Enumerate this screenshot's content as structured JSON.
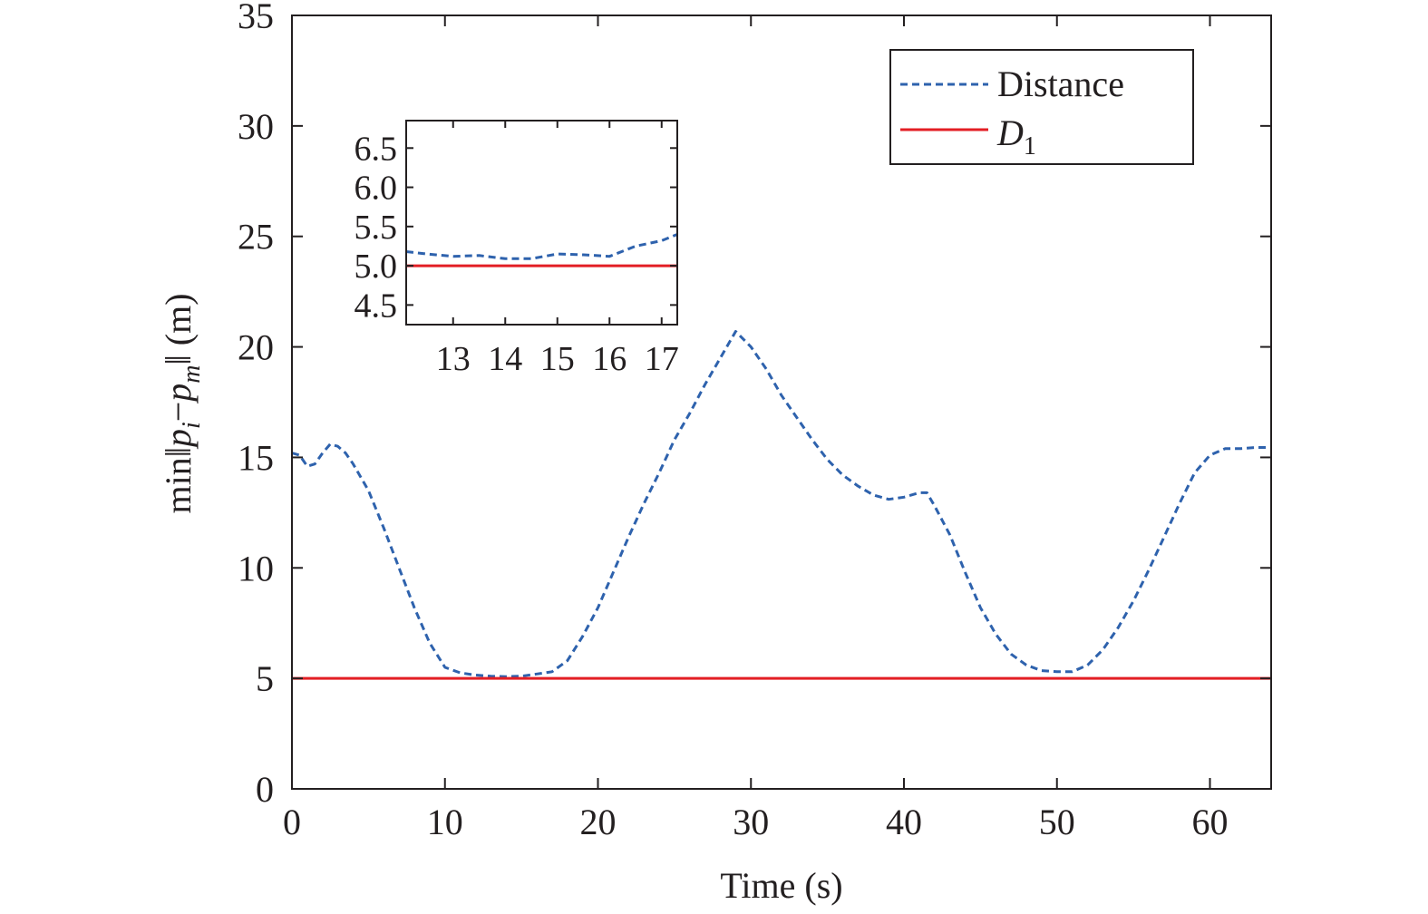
{
  "chart_data": [
    {
      "type": "line",
      "title": "",
      "xlabel": "Time (s)",
      "ylabel": {
        "prefix": "min‖",
        "p1": "p",
        "sub1": "i",
        "minus": "−",
        "p2": "p",
        "sub2": "m",
        "suffix": "‖ (m)"
      },
      "xlim": [
        0,
        64
      ],
      "ylim": [
        0,
        35
      ],
      "xticks": [
        0,
        10,
        20,
        30,
        40,
        50,
        60
      ],
      "yticks": [
        0,
        5,
        10,
        15,
        20,
        25,
        30,
        35
      ],
      "grid": false,
      "legend_position": "top-right",
      "series": [
        {
          "name": "Distance",
          "style": "dashed",
          "color": "#2e62ad",
          "x": [
            0,
            0.5,
            1,
            1.5,
            2,
            2.5,
            3,
            3.5,
            4,
            5,
            6,
            7,
            8,
            9,
            10,
            11,
            12,
            13,
            14,
            15,
            16,
            17,
            18,
            19,
            20,
            21,
            22,
            23,
            24,
            25,
            26,
            27,
            28,
            29,
            30,
            31,
            32,
            33,
            34,
            35,
            36,
            37,
            38,
            39,
            40,
            41,
            41.5,
            42,
            43,
            44,
            45,
            46,
            47,
            48,
            49,
            50,
            51,
            52,
            53,
            54,
            55,
            56,
            57,
            58,
            59,
            60,
            61,
            62,
            63,
            64
          ],
          "y": [
            15.2,
            15.1,
            14.6,
            14.7,
            15.2,
            15.6,
            15.5,
            15.2,
            14.7,
            13.5,
            11.8,
            10.0,
            8.2,
            6.6,
            5.5,
            5.25,
            5.15,
            5.1,
            5.08,
            5.1,
            5.2,
            5.3,
            5.8,
            6.9,
            8.2,
            9.8,
            11.4,
            12.9,
            14.3,
            15.8,
            17.0,
            18.3,
            19.5,
            20.7,
            20.0,
            19.0,
            17.8,
            16.8,
            15.8,
            14.9,
            14.2,
            13.7,
            13.3,
            13.1,
            13.2,
            13.4,
            13.4,
            12.8,
            11.5,
            9.8,
            8.2,
            7.0,
            6.1,
            5.6,
            5.35,
            5.3,
            5.3,
            5.6,
            6.3,
            7.3,
            8.5,
            9.9,
            11.4,
            12.9,
            14.3,
            15.1,
            15.4,
            15.4,
            15.45,
            15.45
          ]
        },
        {
          "name": "D",
          "name_subscript": "1",
          "style": "solid",
          "color": "#e31e24",
          "x": [
            0,
            64
          ],
          "y": [
            5,
            5
          ]
        }
      ]
    },
    {
      "type": "line",
      "role": "inset",
      "xlim": [
        12.1,
        17.3
      ],
      "ylim": [
        4.25,
        6.85
      ],
      "xticks": [
        13,
        14,
        15,
        16,
        17
      ],
      "yticks": [
        "4.5",
        "5.0",
        "5.5",
        "6.0",
        "6.5"
      ],
      "series": [
        {
          "style": "dashed",
          "color": "#2e62ad",
          "x": [
            12.1,
            12.5,
            13.0,
            13.5,
            14.0,
            14.5,
            15.0,
            15.5,
            16.0,
            16.5,
            17.0,
            17.3
          ],
          "y": [
            5.18,
            5.15,
            5.12,
            5.13,
            5.09,
            5.09,
            5.15,
            5.14,
            5.12,
            5.25,
            5.32,
            5.4
          ]
        },
        {
          "style": "solid",
          "color": "#e31e24",
          "x": [
            12.1,
            17.3
          ],
          "y": [
            5.0,
            5.0
          ]
        }
      ]
    }
  ]
}
